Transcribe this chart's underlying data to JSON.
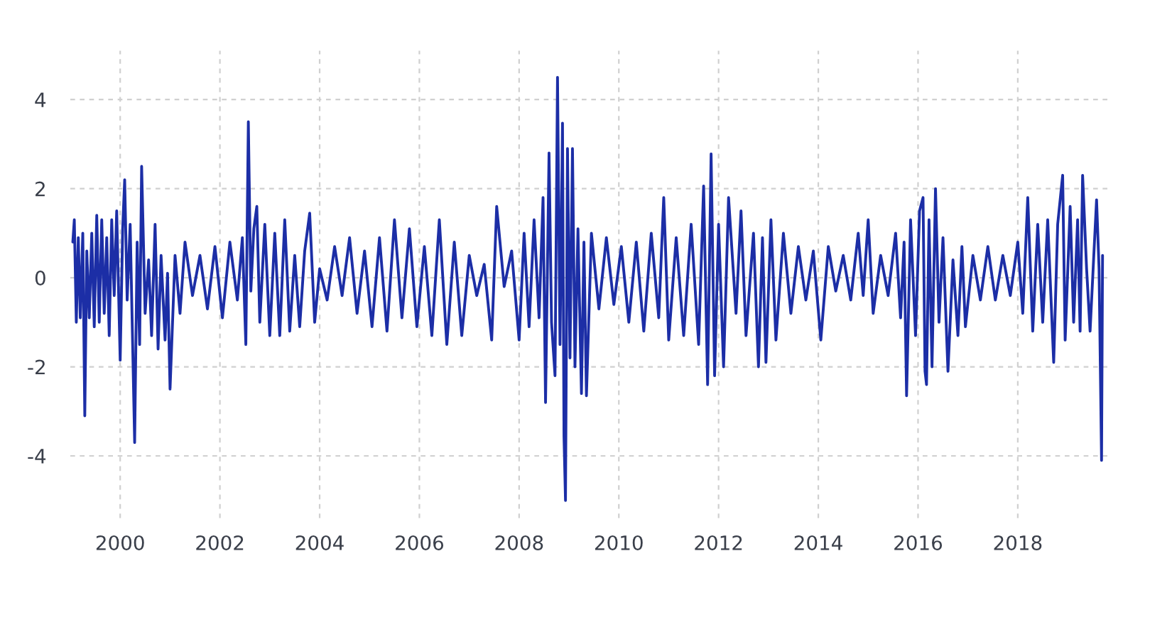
{
  "chart_data": {
    "type": "line",
    "x": [
      1999.05,
      1999.08,
      1999.12,
      1999.16,
      1999.2,
      1999.25,
      1999.29,
      1999.33,
      1999.38,
      1999.43,
      1999.48,
      1999.53,
      1999.58,
      1999.63,
      1999.68,
      1999.73,
      1999.78,
      1999.83,
      1999.88,
      1999.93,
      2000.0,
      2000.05,
      2000.09,
      2000.14,
      2000.2,
      2000.25,
      2000.29,
      2000.34,
      2000.39,
      2000.43,
      2000.5,
      2000.57,
      2000.63,
      2000.7,
      2000.76,
      2000.82,
      2000.9,
      2000.95,
      2001.0,
      2001.1,
      2001.2,
      2001.3,
      2001.45,
      2001.6,
      2001.75,
      2001.9,
      2002.05,
      2002.2,
      2002.35,
      2002.45,
      2002.52,
      2002.57,
      2002.62,
      2002.68,
      2002.74,
      2002.8,
      2002.9,
      2003.0,
      2003.1,
      2003.2,
      2003.3,
      2003.4,
      2003.5,
      2003.6,
      2003.7,
      2003.8,
      2003.9,
      2004.0,
      2004.15,
      2004.3,
      2004.45,
      2004.6,
      2004.75,
      2004.9,
      2005.05,
      2005.2,
      2005.35,
      2005.5,
      2005.65,
      2005.8,
      2005.95,
      2006.1,
      2006.25,
      2006.4,
      2006.55,
      2006.7,
      2006.85,
      2007.0,
      2007.15,
      2007.3,
      2007.45,
      2007.55,
      2007.7,
      2007.85,
      2008.0,
      2008.1,
      2008.2,
      2008.3,
      2008.4,
      2008.48,
      2008.53,
      2008.6,
      2008.65,
      2008.72,
      2008.77,
      2008.82,
      2008.87,
      2008.9,
      2008.93,
      2008.97,
      2009.02,
      2009.07,
      2009.12,
      2009.18,
      2009.25,
      2009.3,
      2009.35,
      2009.45,
      2009.6,
      2009.75,
      2009.9,
      2010.05,
      2010.2,
      2010.35,
      2010.5,
      2010.65,
      2010.8,
      2010.9,
      2011.0,
      2011.15,
      2011.3,
      2011.45,
      2011.6,
      2011.7,
      2011.78,
      2011.85,
      2011.92,
      2012.0,
      2012.1,
      2012.2,
      2012.35,
      2012.45,
      2012.55,
      2012.7,
      2012.8,
      2012.88,
      2012.95,
      2013.05,
      2013.15,
      2013.3,
      2013.45,
      2013.6,
      2013.75,
      2013.9,
      2014.05,
      2014.2,
      2014.35,
      2014.5,
      2014.65,
      2014.8,
      2014.9,
      2015.0,
      2015.1,
      2015.25,
      2015.4,
      2015.55,
      2015.65,
      2015.72,
      2015.77,
      2015.85,
      2015.95,
      2016.03,
      2016.1,
      2016.14,
      2016.17,
      2016.22,
      2016.28,
      2016.35,
      2016.42,
      2016.5,
      2016.6,
      2016.7,
      2016.8,
      2016.88,
      2016.95,
      2017.1,
      2017.25,
      2017.4,
      2017.55,
      2017.7,
      2017.85,
      2018.0,
      2018.1,
      2018.2,
      2018.3,
      2018.4,
      2018.5,
      2018.6,
      2018.72,
      2018.8,
      2018.9,
      2018.95,
      2019.05,
      2019.12,
      2019.2,
      2019.25,
      2019.3,
      2019.38,
      2019.45,
      2019.52,
      2019.58,
      2019.63,
      2019.68,
      2019.7
    ],
    "series": [
      {
        "color": "#1c2ea6",
        "values": [
          0.8,
          1.3,
          -1.0,
          0.9,
          -0.9,
          1.0,
          -3.1,
          0.6,
          -0.9,
          1.0,
          -1.1,
          1.4,
          -1.0,
          1.3,
          -0.8,
          0.9,
          -1.3,
          1.3,
          -0.4,
          1.5,
          -1.85,
          1.1,
          2.2,
          -0.5,
          1.2,
          -1.5,
          -3.7,
          0.8,
          -1.5,
          2.5,
          -0.8,
          0.4,
          -1.3,
          1.2,
          -1.6,
          0.5,
          -1.4,
          0.1,
          -2.5,
          0.5,
          -0.8,
          0.8,
          -0.4,
          0.5,
          -0.7,
          0.7,
          -0.9,
          0.8,
          -0.5,
          0.9,
          -1.5,
          3.5,
          -0.3,
          1.1,
          1.6,
          -1.0,
          1.2,
          -1.3,
          1.0,
          -1.3,
          1.3,
          -1.2,
          0.5,
          -1.1,
          0.6,
          1.45,
          -1.0,
          0.2,
          -0.5,
          0.7,
          -0.4,
          0.9,
          -0.8,
          0.6,
          -1.1,
          0.9,
          -1.2,
          1.3,
          -0.9,
          1.1,
          -1.1,
          0.7,
          -1.3,
          1.3,
          -1.5,
          0.8,
          -1.3,
          0.5,
          -0.4,
          0.3,
          -1.4,
          1.6,
          -0.2,
          0.6,
          -1.4,
          1.0,
          -1.1,
          1.3,
          -0.9,
          1.8,
          -2.8,
          2.8,
          -1.0,
          -2.2,
          4.5,
          -1.5,
          3.47,
          -3.56,
          -5.0,
          2.9,
          -1.8,
          2.9,
          -2.0,
          1.1,
          -2.6,
          0.8,
          -2.65,
          1.0,
          -0.7,
          0.9,
          -0.6,
          0.7,
          -1.0,
          0.8,
          -1.2,
          1.0,
          -0.9,
          1.8,
          -1.4,
          0.9,
          -1.3,
          1.2,
          -1.5,
          2.06,
          -2.4,
          2.78,
          -2.2,
          1.2,
          -2.0,
          1.8,
          -0.8,
          1.5,
          -1.3,
          1.0,
          -2.0,
          0.9,
          -1.9,
          1.3,
          -1.4,
          1.0,
          -0.8,
          0.7,
          -0.5,
          0.6,
          -1.4,
          0.7,
          -0.3,
          0.5,
          -0.5,
          1.0,
          -0.4,
          1.3,
          -0.8,
          0.5,
          -0.4,
          1.0,
          -0.9,
          0.8,
          -2.65,
          1.3,
          -1.3,
          1.5,
          1.8,
          -2.1,
          -2.4,
          1.3,
          -2.0,
          2.0,
          -1.0,
          0.9,
          -2.1,
          0.4,
          -1.3,
          0.7,
          -1.1,
          0.5,
          -0.5,
          0.7,
          -0.5,
          0.5,
          -0.4,
          0.8,
          -0.8,
          1.8,
          -1.2,
          1.2,
          -1.0,
          1.3,
          -1.9,
          1.2,
          2.3,
          -1.4,
          1.6,
          -1.0,
          1.3,
          -1.2,
          2.3,
          0.2,
          -1.2,
          0.4,
          1.75,
          0.2,
          -4.1,
          0.5
        ]
      }
    ],
    "xlim": [
      1999.0,
      2019.8
    ],
    "ylim": [
      -5.4,
      5.1
    ],
    "xticks": [
      2000,
      2002,
      2004,
      2006,
      2008,
      2010,
      2012,
      2014,
      2016,
      2018
    ],
    "yticks": [
      -4,
      -2,
      0,
      2,
      4
    ],
    "grid": true,
    "line_style": "solid",
    "marker": "none"
  }
}
